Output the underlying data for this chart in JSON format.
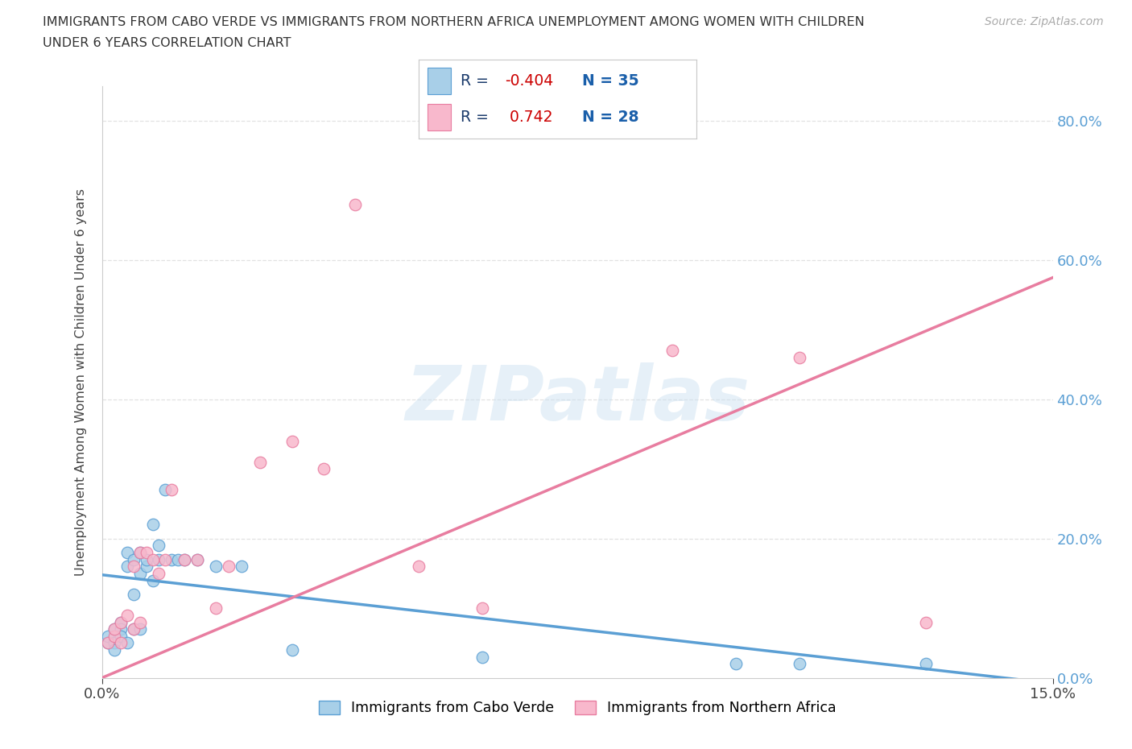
{
  "title_line1": "IMMIGRANTS FROM CABO VERDE VS IMMIGRANTS FROM NORTHERN AFRICA UNEMPLOYMENT AMONG WOMEN WITH CHILDREN",
  "title_line2": "UNDER 6 YEARS CORRELATION CHART",
  "source": "Source: ZipAtlas.com",
  "ylabel": "Unemployment Among Women with Children Under 6 years",
  "xlim": [
    0.0,
    0.15
  ],
  "ylim": [
    0.0,
    0.85
  ],
  "ytick_vals": [
    0.0,
    0.2,
    0.4,
    0.6,
    0.8
  ],
  "xtick_vals": [
    0.0,
    0.15
  ],
  "cabo_verde_color": "#a8cfe8",
  "cabo_verde_edge": "#5b9fd4",
  "northern_africa_color": "#f8b8cc",
  "northern_africa_edge": "#e87da0",
  "r_cabo_verde": -0.404,
  "n_cabo_verde": 35,
  "r_northern_africa": 0.742,
  "n_northern_africa": 28,
  "cabo_line_x0": 0.0,
  "cabo_line_y0": 0.148,
  "cabo_line_x1": 0.15,
  "cabo_line_y1": -0.008,
  "na_line_x0": 0.0,
  "na_line_y0": 0.0,
  "na_line_x1": 0.15,
  "na_line_y1": 0.575,
  "cabo_verde_x": [
    0.001,
    0.001,
    0.002,
    0.002,
    0.002,
    0.003,
    0.003,
    0.003,
    0.004,
    0.004,
    0.004,
    0.005,
    0.005,
    0.005,
    0.006,
    0.006,
    0.006,
    0.007,
    0.007,
    0.008,
    0.008,
    0.009,
    0.009,
    0.01,
    0.011,
    0.012,
    0.013,
    0.015,
    0.018,
    0.022,
    0.03,
    0.06,
    0.1,
    0.11,
    0.13
  ],
  "cabo_verde_y": [
    0.05,
    0.06,
    0.07,
    0.05,
    0.04,
    0.08,
    0.07,
    0.06,
    0.16,
    0.18,
    0.05,
    0.07,
    0.17,
    0.12,
    0.18,
    0.15,
    0.07,
    0.16,
    0.17,
    0.14,
    0.22,
    0.17,
    0.19,
    0.27,
    0.17,
    0.17,
    0.17,
    0.17,
    0.16,
    0.16,
    0.04,
    0.03,
    0.02,
    0.02,
    0.02
  ],
  "northern_africa_x": [
    0.001,
    0.002,
    0.002,
    0.003,
    0.003,
    0.004,
    0.005,
    0.005,
    0.006,
    0.006,
    0.007,
    0.008,
    0.009,
    0.01,
    0.011,
    0.013,
    0.015,
    0.018,
    0.02,
    0.025,
    0.03,
    0.035,
    0.04,
    0.05,
    0.06,
    0.09,
    0.11,
    0.13
  ],
  "northern_africa_y": [
    0.05,
    0.06,
    0.07,
    0.08,
    0.05,
    0.09,
    0.16,
    0.07,
    0.18,
    0.08,
    0.18,
    0.17,
    0.15,
    0.17,
    0.27,
    0.17,
    0.17,
    0.1,
    0.16,
    0.31,
    0.34,
    0.3,
    0.68,
    0.16,
    0.1,
    0.47,
    0.46,
    0.08
  ],
  "watermark_text": "ZIPatlas",
  "bg_color": "#ffffff",
  "grid_color": "#e2e2e2",
  "right_tick_color": "#5b9fd4",
  "legend_label_color": "#1a3a6b",
  "legend_r_highlight": "#cc0000",
  "legend_n_highlight": "#1a5faa"
}
